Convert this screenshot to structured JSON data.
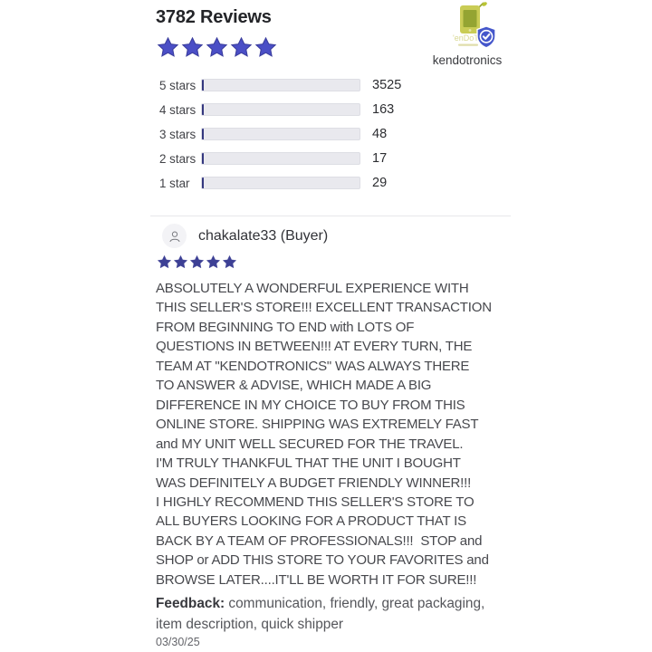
{
  "colors": {
    "accent_bar_fill": "#5355d4",
    "accent_bar_border": "#34377e",
    "star_large": "#4b4fc6",
    "star_large_stroke": "#393c9c",
    "star_small": "#3d4095",
    "bar_track": "#e9e9ee",
    "shield_blue": "#4557cb",
    "logo_green": "#c9cc55",
    "logo_screen_green": "#94a432"
  },
  "header": {
    "title": "3782 Reviews",
    "rating_stars": 5,
    "store_name": "kendotronics",
    "logo_text": "'enDoT"
  },
  "rating_breakdown": {
    "total": 3782,
    "rows": [
      {
        "label": "5 stars",
        "value": 3525
      },
      {
        "label": "4 stars",
        "value": 163
      },
      {
        "label": "3 stars",
        "value": 48
      },
      {
        "label": "2 stars",
        "value": 17
      },
      {
        "label": "1 star",
        "value": 29
      }
    ]
  },
  "review": {
    "author": "chakalate33 (Buyer)",
    "stars": 5,
    "body": "ABSOLUTELY A WONDERFUL EXPERIENCE WITH\nTHIS SELLER'S STORE!!! EXCELLENT TRANSACTION\nFROM BEGINNING TO END with LOTS OF\nQUESTIONS IN BETWEEN!!! AT EVERY TURN, THE\nTEAM AT \"KENDOTRONICS\" WAS ALWAYS THERE\nTO ANSWER & ADVISE, WHICH MADE A BIG\nDIFFERENCE IN MY CHOICE TO BUY FROM THIS\nONLINE STORE. SHIPPING WAS EXTREMELY FAST\nand MY UNIT WELL SECURED FOR THE TRAVEL.\nI'M TRULY THANKFUL THAT THE UNIT I BOUGHT\nWAS DEFINITELY A BUDGET FRIENDLY WINNER!!!\nI HIGHLY RECOMMEND THIS SELLER'S STORE TO\nALL BUYERS LOOKING FOR A PRODUCT THAT IS\nBACK BY A TEAM OF PROFESSIONALS!!!  STOP and\nSHOP or ADD THIS STORE TO YOUR FAVORITES and\nBROWSE LATER....IT'LL BE WORTH IT FOR SURE!!!",
    "feedback_label": "Feedback:",
    "feedback_text": " communication, friendly, great packaging,\nitem description, quick shipper",
    "date": "03/30/25"
  },
  "chart_data": {
    "type": "bar",
    "title": "3782 Reviews",
    "categories": [
      "5 stars",
      "4 stars",
      "3 stars",
      "2 stars",
      "1 star"
    ],
    "values": [
      3525,
      163,
      48,
      17,
      29
    ],
    "xlabel": "",
    "ylabel": "",
    "xlim": [
      0,
      3782
    ],
    "orientation": "horizontal",
    "legend": false
  }
}
